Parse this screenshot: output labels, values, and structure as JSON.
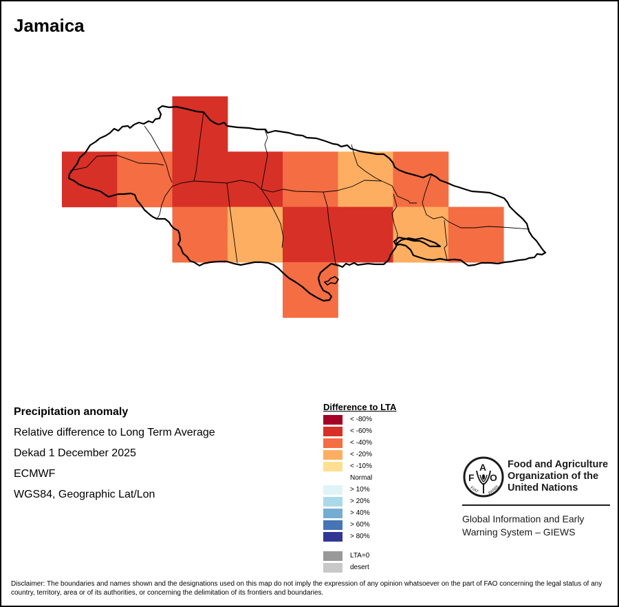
{
  "title": "Jamaica",
  "info_lines": [
    "Precipitation anomaly",
    "Relative difference to Long Term Average",
    "Dekad 1 December 2025",
    "ECMWF",
    "WGS84, Geographic Lat/Lon"
  ],
  "legend": {
    "title": "Difference to LTA",
    "items": [
      {
        "label": "< -80%",
        "color": "#a50026"
      },
      {
        "label": "< -60%",
        "color": "#d73027"
      },
      {
        "label": "< -40%",
        "color": "#f46d43"
      },
      {
        "label": "< -20%",
        "color": "#fdae61"
      },
      {
        "label": "< -10%",
        "color": "#fee090"
      },
      {
        "label": "Normal",
        "color": null
      },
      {
        "label": "> 10%",
        "color": "#e0f3f8"
      },
      {
        "label": "> 20%",
        "color": "#abd9e9"
      },
      {
        "label": "> 40%",
        "color": "#74add1"
      },
      {
        "label": "> 60%",
        "color": "#4575b4"
      },
      {
        "label": "> 80%",
        "color": "#313695"
      },
      {
        "label": "LTA=0",
        "color": "#999999"
      },
      {
        "label": "desert",
        "color": "#c8c8c8"
      }
    ]
  },
  "grid_classes": [
    [
      null,
      null,
      "< -60%",
      null,
      null,
      null,
      null,
      null
    ],
    [
      "< -60%",
      "< -40%",
      "< -60%",
      "< -60%",
      "< -40%",
      "< -20%",
      "< -40%",
      null
    ],
    [
      null,
      null,
      "< -40%",
      "< -20%",
      "< -60%",
      "< -60%",
      "< -20%",
      "< -40%"
    ],
    [
      null,
      null,
      null,
      null,
      "< -40%",
      null,
      null,
      null
    ]
  ],
  "logo": {
    "org_name": [
      "Food and Agriculture",
      "Organization of the",
      "United Nations"
    ],
    "system_name": [
      "Global Information and Early",
      "Warning System – GIEWS"
    ],
    "emblem_text": "FAO FIAT PANIS"
  },
  "disclaimer": "Disclaimer: The boundaries and names shown and the designations used on this map do not imply the expression of any opinion whatsoever on the part of FAO concerning the legal status of any country, territory, area or of its authorities, or concerning the delimitation of its frontiers and boundaries."
}
